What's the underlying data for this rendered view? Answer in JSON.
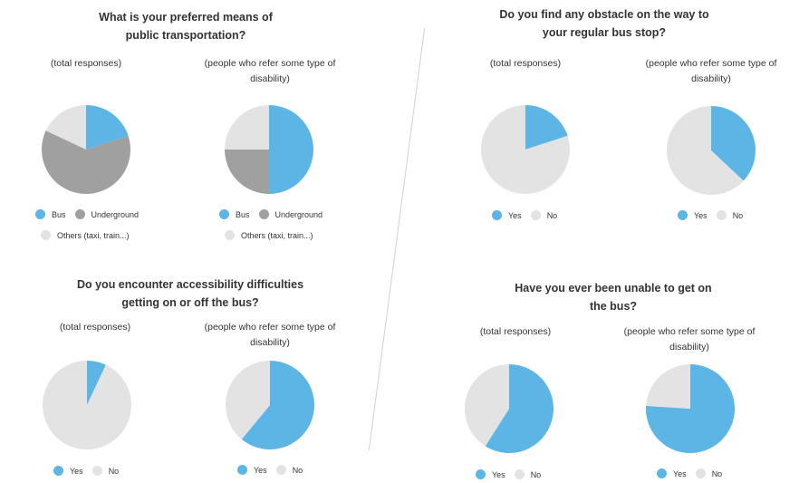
{
  "colors": {
    "bus": "#5db5e6",
    "underground": "#a0a0a0",
    "others": "#e3e3e3",
    "yes": "#5db5e6",
    "no": "#e3e3e3"
  },
  "chart_data": [
    {
      "type": "pie",
      "title": "What is your preferred means of public transportation?",
      "subtitle": "(total responses)",
      "slices": [
        {
          "label": "Bus",
          "value": 0.2,
          "color": "#5db5e6"
        },
        {
          "label": "Underground",
          "value": 0.62,
          "color": "#a0a0a0"
        },
        {
          "label": "Others (taxi, train...)",
          "value": 0.18,
          "color": "#e3e3e3"
        }
      ]
    },
    {
      "type": "pie",
      "title": "What is your preferred means of public transportation?",
      "subtitle": "(people who refer some type of disability)",
      "slices": [
        {
          "label": "Bus",
          "value": 0.5,
          "color": "#5db5e6"
        },
        {
          "label": "Underground",
          "value": 0.25,
          "color": "#a0a0a0"
        },
        {
          "label": "Others (taxi, train...)",
          "value": 0.25,
          "color": "#e3e3e3"
        }
      ]
    },
    {
      "type": "pie",
      "title": "Do you find any obstacle on the way to your regular bus stop?",
      "subtitle": "(total responses)",
      "slices": [
        {
          "label": "Yes",
          "value": 0.2,
          "color": "#5db5e6"
        },
        {
          "label": "No",
          "value": 0.8,
          "color": "#e3e3e3"
        }
      ]
    },
    {
      "type": "pie",
      "title": "Do you find any obstacle on the way to your regular bus stop?",
      "subtitle": "(people who refer some type of disability)",
      "slices": [
        {
          "label": "Yes",
          "value": 0.37,
          "color": "#5db5e6"
        },
        {
          "label": "No",
          "value": 0.63,
          "color": "#e3e3e3"
        }
      ]
    },
    {
      "type": "pie",
      "title": "Do you encounter accessibility difficulties getting on or off the bus?",
      "subtitle": "(total responses)",
      "slices": [
        {
          "label": "Yes",
          "value": 0.07,
          "color": "#5db5e6"
        },
        {
          "label": "No",
          "value": 0.93,
          "color": "#e3e3e3"
        }
      ]
    },
    {
      "type": "pie",
      "title": "Do you encounter accessibility difficulties getting on or off the bus?",
      "subtitle": "(people who refer some type of disability)",
      "slices": [
        {
          "label": "Yes",
          "value": 0.61,
          "color": "#5db5e6"
        },
        {
          "label": "No",
          "value": 0.39,
          "color": "#e3e3e3"
        }
      ]
    },
    {
      "type": "pie",
      "title": "Have you ever been unable to get on the bus?",
      "subtitle": "(total responses)",
      "slices": [
        {
          "label": "Yes",
          "value": 0.59,
          "color": "#5db5e6"
        },
        {
          "label": "No",
          "value": 0.41,
          "color": "#e3e3e3"
        }
      ]
    },
    {
      "type": "pie",
      "title": "Have you ever been unable to get on the bus?",
      "subtitle": "(people who refer some type of disability)",
      "slices": [
        {
          "label": "Yes",
          "value": 0.76,
          "color": "#5db5e6"
        },
        {
          "label": "No",
          "value": 0.24,
          "color": "#e3e3e3"
        }
      ]
    }
  ],
  "text": {
    "q1_line1": "What is your preferred means of",
    "q1_line2": "public transportation?",
    "q2_line1": "Do you find any obstacle on the way to",
    "q2_line2": "your regular bus stop?",
    "q3_line1": "Do you encounter accessibility difficulties",
    "q3_line2": "getting on or off the bus?",
    "q4_line1": "Have you ever been unable to get on",
    "q4_line2": "the bus?",
    "sub_total": "(total responses)",
    "sub_dis_line1": "(people who refer some type of",
    "sub_dis_line2": "disability)",
    "legend_bus": "Bus",
    "legend_underground": "Underground",
    "legend_others": "Others (taxi, train...)",
    "legend_yes": "Yes",
    "legend_no": "No"
  }
}
